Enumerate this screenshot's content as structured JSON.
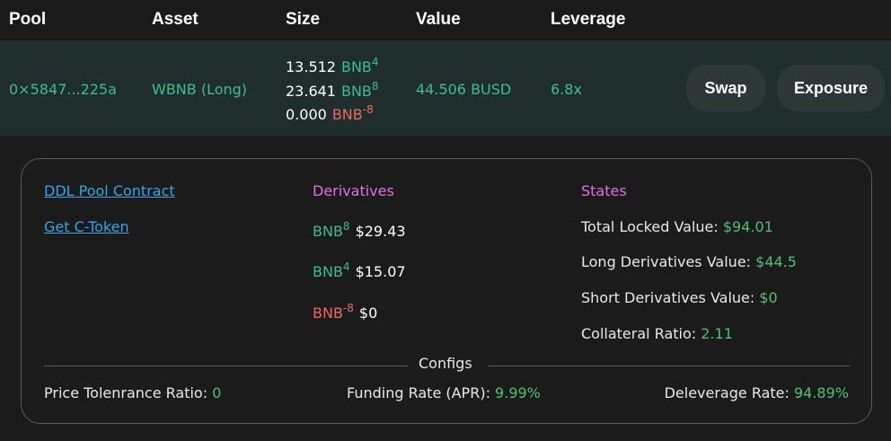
{
  "header": {
    "pool": "Pool",
    "asset": "Asset",
    "size": "Size",
    "value": "Value",
    "leverage": "Leverage"
  },
  "row": {
    "pool": "0×5847...225a",
    "asset": "WBNB (Long)",
    "sizes": [
      {
        "amount": "13.512",
        "token": "BNB",
        "power": "4"
      },
      {
        "amount": "23.641",
        "token": "BNB",
        "power": "8"
      },
      {
        "amount": "0.000",
        "token": "BNB",
        "power": "-8"
      }
    ],
    "value": "44.506 BUSD",
    "leverage": "6.8x",
    "swap_label": "Swap",
    "exposure_label": "Exposure"
  },
  "details": {
    "links": {
      "pool_contract": "DDL Pool Contract",
      "get_ctoken": "Get C-Token"
    },
    "derivatives": {
      "title": "Derivatives",
      "items": [
        {
          "token": "BNB",
          "power": "8",
          "value": "$29.43"
        },
        {
          "token": "BNB",
          "power": "4",
          "value": "$15.07"
        },
        {
          "token": "BNB",
          "power": "-8",
          "value": "$0"
        }
      ]
    },
    "states": {
      "title": "States",
      "total_locked_label": "Total Locked Value:",
      "total_locked_value": "$94.01",
      "long_label": "Long Derivatives Value:",
      "long_value": "$44.5",
      "short_label": "Short Derivatives Value:",
      "short_value": "$0",
      "collateral_label": "Collateral Ratio:",
      "collateral_value": "2.11"
    },
    "configs": {
      "title": "Configs",
      "price_tolerance_label": "Price Tolenrance Ratio:",
      "price_tolerance_value": "0",
      "funding_rate_label": "Funding Rate (APR):",
      "funding_rate_value": "9.99%",
      "deleverage_label": "Deleverage Rate:",
      "deleverage_value": "94.89%"
    }
  },
  "colors": {
    "accent_green": "#3bbf8f",
    "value_green": "#4cc36b",
    "negative_red": "#f2665c",
    "link_blue": "#2fa7e9",
    "section_pink": "#e46fe6"
  }
}
